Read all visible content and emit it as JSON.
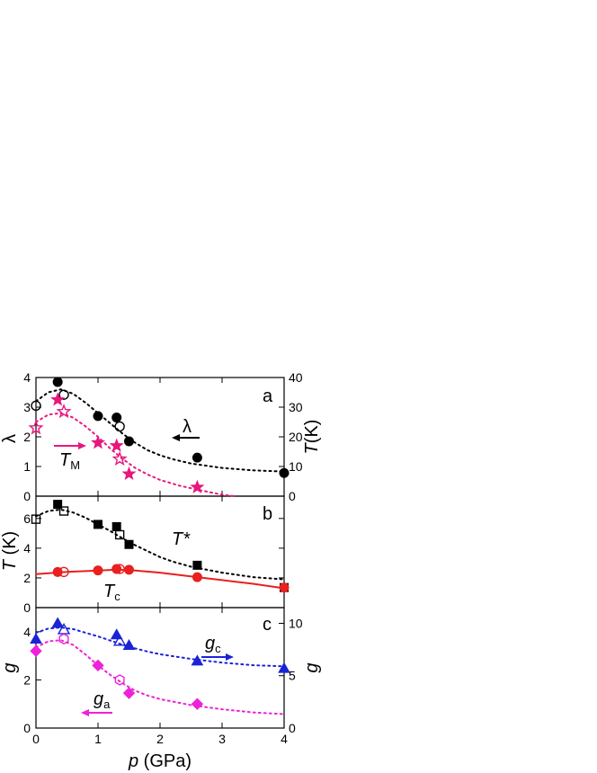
{
  "colors": {
    "black": "#000000",
    "magenta": "#e8177f",
    "red": "#e8201f",
    "blue": "#1a24d6",
    "pink": "#ee22d8"
  },
  "x_axis": {
    "label_italic": "p",
    "label_rest": " (GPa)",
    "ticks": [
      "0",
      "1",
      "2",
      "3",
      "4"
    ]
  },
  "panel_letters": [
    "a",
    "b",
    "c"
  ],
  "panel_a": {
    "left_axis_label": "λ",
    "right_axis_label_italic": "T",
    "right_axis_label_rest": "(K)",
    "left_ticks": [
      "0",
      "1",
      "2",
      "3",
      "4"
    ],
    "right_ticks": [
      "0",
      "10",
      "20",
      "30",
      "40"
    ],
    "legend_lambda": "λ",
    "legend_TM_main": "T",
    "legend_TM_sub": "M"
  },
  "panel_b": {
    "left_axis_label_italic": "T",
    "left_axis_label_rest": " (K)",
    "left_ticks": [
      "0",
      "2",
      "4",
      "6"
    ],
    "label_Tstar": "T*",
    "label_Tc_main": "T",
    "label_Tc_sub": "c"
  },
  "panel_c": {
    "left_axis_label": "g",
    "right_axis_label": "g",
    "left_ticks": [
      "0",
      "2",
      "4"
    ],
    "right_ticks": [
      "0",
      "5",
      "10"
    ],
    "label_gc_main": "g",
    "label_gc_sub": "c",
    "label_ga_main": "g",
    "label_ga_sub": "a"
  },
  "chart_data": [
    {
      "type": "scatter",
      "panel": "a",
      "xlabel": "p (GPa)",
      "ylabel": "λ",
      "ylabel_right": "T(K)",
      "xlim": [
        0,
        4
      ],
      "ylim": [
        0,
        4
      ],
      "ylim_right": [
        0,
        40
      ],
      "series": [
        {
          "name": "λ",
          "axis": "left",
          "marker": "circle",
          "filled": true,
          "color": "#000000",
          "points": [
            [
              0.35,
              3.85
            ],
            [
              1.0,
              2.7
            ],
            [
              1.3,
              2.65
            ],
            [
              1.5,
              1.85
            ],
            [
              2.6,
              1.3
            ],
            [
              4.0,
              0.78
            ]
          ]
        },
        {
          "axis": "left",
          "marker": "circle",
          "filled": false,
          "color": "#000000",
          "points": [
            [
              0.0,
              3.05
            ],
            [
              0.45,
              3.42
            ],
            [
              1.35,
              2.35
            ]
          ]
        },
        {
          "axis": "left",
          "style": "dotted-fit",
          "color": "#000000",
          "points": [
            [
              0,
              3.2
            ],
            [
              0.2,
              3.5
            ],
            [
              0.4,
              3.6
            ],
            [
              0.6,
              3.45
            ],
            [
              0.8,
              3.15
            ],
            [
              1.0,
              2.8
            ],
            [
              1.2,
              2.45
            ],
            [
              1.4,
              2.1
            ],
            [
              1.6,
              1.8
            ],
            [
              1.8,
              1.55
            ],
            [
              2.0,
              1.38
            ],
            [
              2.2,
              1.25
            ],
            [
              2.5,
              1.1
            ],
            [
              3.0,
              0.95
            ],
            [
              3.5,
              0.87
            ],
            [
              4.0,
              0.83
            ]
          ]
        },
        {
          "name": "T_M",
          "axis": "right",
          "marker": "star",
          "filled": true,
          "color": "#e8177f",
          "points": [
            [
              0.35,
              32.5
            ],
            [
              1.0,
              18.0
            ],
            [
              1.3,
              17.0
            ],
            [
              1.5,
              7.5
            ],
            [
              2.6,
              3.0
            ]
          ]
        },
        {
          "axis": "right",
          "marker": "star",
          "filled": false,
          "color": "#e8177f",
          "points": [
            [
              0.0,
              23.0
            ],
            [
              0.45,
              28.5
            ],
            [
              1.35,
              12.5
            ]
          ]
        },
        {
          "axis": "right",
          "style": "dotted-fit",
          "color": "#e8177f",
          "points": [
            [
              0,
              25.0
            ],
            [
              0.2,
              27.5
            ],
            [
              0.4,
              28.0
            ],
            [
              0.6,
              26.5
            ],
            [
              0.8,
              23.5
            ],
            [
              1.0,
              20.0
            ],
            [
              1.2,
              16.0
            ],
            [
              1.4,
              12.5
            ],
            [
              1.6,
              9.5
            ],
            [
              1.8,
              7.3
            ],
            [
              2.0,
              5.5
            ],
            [
              2.3,
              3.6
            ],
            [
              2.6,
              2.2
            ],
            [
              3.0,
              0.5
            ],
            [
              3.2,
              0.0
            ]
          ]
        }
      ]
    },
    {
      "type": "scatter",
      "panel": "b",
      "ylabel": "T (K)",
      "xlim": [
        0,
        4
      ],
      "ylim": [
        0,
        7.5
      ],
      "series": [
        {
          "name": "T*",
          "marker": "square",
          "filled": true,
          "color": "#000000",
          "points": [
            [
              0.35,
              6.95
            ],
            [
              1.0,
              5.6
            ],
            [
              1.3,
              5.45
            ],
            [
              1.5,
              4.25
            ],
            [
              2.6,
              2.85
            ],
            [
              4.0,
              1.35
            ]
          ]
        },
        {
          "marker": "square",
          "filled": false,
          "color": "#000000",
          "points": [
            [
              0.0,
              5.95
            ],
            [
              0.45,
              6.5
            ],
            [
              1.35,
              4.9
            ]
          ]
        },
        {
          "style": "dotted-fit",
          "color": "#000000",
          "points": [
            [
              0,
              6.15
            ],
            [
              0.2,
              6.5
            ],
            [
              0.4,
              6.6
            ],
            [
              0.6,
              6.4
            ],
            [
              0.8,
              6.05
            ],
            [
              1.0,
              5.6
            ],
            [
              1.2,
              5.15
            ],
            [
              1.4,
              4.65
            ],
            [
              1.6,
              4.2
            ],
            [
              1.8,
              3.8
            ],
            [
              2.0,
              3.4
            ],
            [
              2.2,
              3.1
            ],
            [
              2.5,
              2.75
            ],
            [
              3.0,
              2.35
            ],
            [
              3.5,
              2.05
            ],
            [
              4.0,
              1.9
            ]
          ]
        },
        {
          "name": "T_c",
          "marker": "circle",
          "filled": true,
          "color": "#e8201f",
          "points": [
            [
              0.35,
              2.4
            ],
            [
              1.0,
              2.5
            ],
            [
              1.3,
              2.6
            ],
            [
              1.5,
              2.55
            ],
            [
              2.6,
              2.05
            ],
            [
              4.0,
              1.35
            ]
          ]
        },
        {
          "marker": "circle",
          "filled": false,
          "color": "#e8201f",
          "points": [
            [
              0.45,
              2.4
            ],
            [
              1.35,
              2.6
            ]
          ]
        },
        {
          "style": "solid-fit",
          "color": "#e8201f",
          "points": [
            [
              0,
              2.25
            ],
            [
              0.5,
              2.4
            ],
            [
              1.0,
              2.5
            ],
            [
              1.3,
              2.55
            ],
            [
              1.6,
              2.5
            ],
            [
              2.0,
              2.35
            ],
            [
              2.6,
              2.05
            ],
            [
              3.0,
              1.85
            ],
            [
              3.5,
              1.6
            ],
            [
              4.0,
              1.3
            ]
          ]
        }
      ]
    },
    {
      "type": "scatter",
      "panel": "c",
      "ylabel": "g",
      "ylabel_right": "g",
      "xlim": [
        0,
        4
      ],
      "ylim": [
        0,
        5
      ],
      "ylim_right": [
        0,
        11.5
      ],
      "series": [
        {
          "name": "g_c",
          "axis": "right",
          "marker": "triangle",
          "filled": true,
          "color": "#1a24d6",
          "points": [
            [
              0.0,
              8.5
            ],
            [
              0.35,
              10.0
            ],
            [
              1.3,
              8.9
            ],
            [
              1.5,
              7.9
            ],
            [
              2.6,
              6.4
            ],
            [
              4.0,
              5.7
            ]
          ]
        },
        {
          "axis": "right",
          "marker": "triangle",
          "filled": false,
          "color": "#1a24d6",
          "points": [
            [
              0.45,
              9.4
            ],
            [
              1.35,
              8.3
            ]
          ]
        },
        {
          "axis": "right",
          "style": "dotted-fit",
          "color": "#1a24d6",
          "points": [
            [
              0,
              9.1
            ],
            [
              0.2,
              9.5
            ],
            [
              0.4,
              9.6
            ],
            [
              0.6,
              9.45
            ],
            [
              0.8,
              9.1
            ],
            [
              1.0,
              8.75
            ],
            [
              1.2,
              8.35
            ],
            [
              1.4,
              7.95
            ],
            [
              1.6,
              7.6
            ],
            [
              1.8,
              7.3
            ],
            [
              2.0,
              7.05
            ],
            [
              2.5,
              6.6
            ],
            [
              3.0,
              6.25
            ],
            [
              3.5,
              6.0
            ],
            [
              4.0,
              5.9
            ]
          ]
        },
        {
          "name": "g_a",
          "axis": "left",
          "marker": "diamond",
          "filled": true,
          "color": "#ee22d8",
          "points": [
            [
              0.0,
              3.2
            ],
            [
              1.0,
              2.6
            ],
            [
              1.5,
              1.45
            ],
            [
              2.6,
              1.0
            ]
          ]
        },
        {
          "axis": "left",
          "marker": "hexagon",
          "filled": false,
          "color": "#ee22d8",
          "points": [
            [
              0.45,
              3.7
            ],
            [
              1.35,
              2.0
            ]
          ]
        },
        {
          "axis": "left",
          "style": "dotted-fit",
          "color": "#ee22d8",
          "points": [
            [
              0,
              3.35
            ],
            [
              0.2,
              3.6
            ],
            [
              0.4,
              3.65
            ],
            [
              0.6,
              3.45
            ],
            [
              0.8,
              3.05
            ],
            [
              1.0,
              2.6
            ],
            [
              1.2,
              2.2
            ],
            [
              1.4,
              1.85
            ],
            [
              1.6,
              1.55
            ],
            [
              1.8,
              1.35
            ],
            [
              2.0,
              1.2
            ],
            [
              2.5,
              0.95
            ],
            [
              3.0,
              0.78
            ],
            [
              3.5,
              0.65
            ],
            [
              4.0,
              0.58
            ]
          ]
        }
      ]
    }
  ]
}
